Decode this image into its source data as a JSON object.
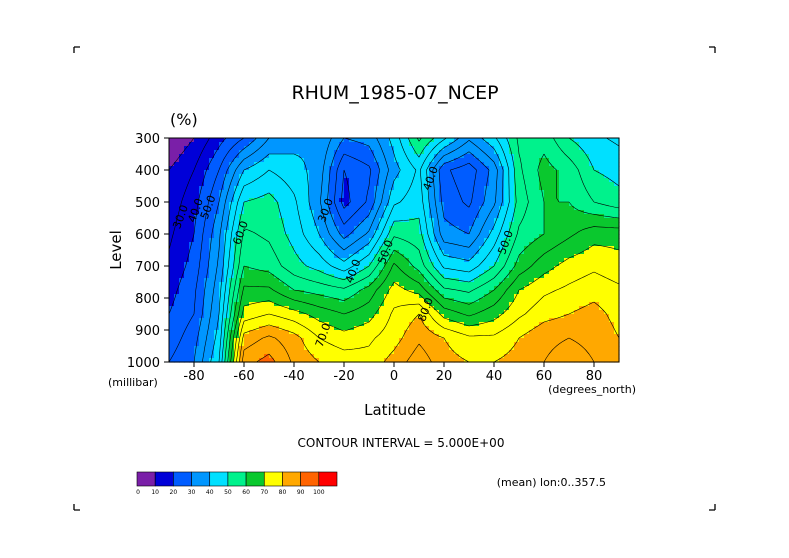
{
  "chart_data": {
    "type": "heatmap",
    "title": "RHUM_1985-07_NCEP",
    "units": "(%)",
    "xlabel": "Latitude",
    "ylabel": "Level",
    "xunits": "(degrees_north)",
    "yunits": "(millibar)",
    "xlim": [
      -90,
      90
    ],
    "ylim": [
      1000,
      300
    ],
    "x_ticks": [
      -80,
      -60,
      -40,
      -20,
      0,
      20,
      40,
      60,
      80
    ],
    "y_ticks": [
      300,
      400,
      500,
      600,
      700,
      800,
      900,
      1000
    ],
    "contour_interval_text": "CONTOUR INTERVAL = 5.000E+00",
    "mean_text": "(mean) lon:0..357.5",
    "grid": false,
    "legend_position": "bottom-left",
    "colorbar": {
      "ticks": [
        "0",
        "10",
        "20",
        "30",
        "40",
        "50",
        "60",
        "70",
        "80",
        "90",
        "100"
      ],
      "colors": [
        "#7a1fa8",
        "#0000d8",
        "#005cff",
        "#0096ff",
        "#00e0ff",
        "#00f28c",
        "#0ac82e",
        "#ffff00",
        "#ffa800",
        "#ff6400",
        "#ff0000"
      ]
    },
    "contour_labels": [
      {
        "text": "30.0",
        "lat": -84,
        "level": 550
      },
      {
        "text": "40.0",
        "lat": -78,
        "level": 530
      },
      {
        "text": "50.0",
        "lat": -73,
        "level": 520
      },
      {
        "text": "60.0",
        "lat": -60,
        "level": 600
      },
      {
        "text": "30.0",
        "lat": -26,
        "level": 530
      },
      {
        "text": "40.0",
        "lat": -15,
        "level": 720
      },
      {
        "text": "50.0",
        "lat": -2,
        "level": 660
      },
      {
        "text": "40.0",
        "lat": 16,
        "level": 430
      },
      {
        "text": "50.0",
        "lat": 46,
        "level": 630
      },
      {
        "text": "70.0",
        "lat": -27,
        "level": 920
      },
      {
        "text": "80.0",
        "lat": 14,
        "level": 840
      }
    ],
    "grid_lat": [
      -90,
      -80,
      -70,
      -60,
      -50,
      -40,
      -30,
      -20,
      -10,
      0,
      10,
      20,
      30,
      40,
      50,
      60,
      70,
      80,
      90
    ],
    "grid_levels": [
      1000,
      925,
      850,
      775,
      700,
      600,
      500,
      400,
      300
    ],
    "values": [
      [
        25,
        30,
        45,
        88,
        92,
        84,
        80,
        78,
        77,
        82,
        88,
        82,
        80,
        80,
        82,
        85,
        87,
        85,
        80
      ],
      [
        22,
        28,
        42,
        82,
        86,
        82,
        75,
        72,
        74,
        78,
        84,
        80,
        76,
        76,
        80,
        84,
        85,
        84,
        80
      ],
      [
        20,
        25,
        40,
        72,
        75,
        72,
        68,
        65,
        68,
        76,
        80,
        68,
        64,
        68,
        74,
        78,
        80,
        82,
        78
      ],
      [
        18,
        24,
        38,
        66,
        66,
        60,
        58,
        56,
        62,
        72,
        68,
        56,
        54,
        60,
        70,
        74,
        76,
        78,
        76
      ],
      [
        16,
        22,
        36,
        60,
        58,
        52,
        48,
        42,
        50,
        66,
        58,
        44,
        42,
        50,
        62,
        68,
        72,
        74,
        72
      ],
      [
        14,
        20,
        34,
        56,
        54,
        48,
        40,
        28,
        36,
        54,
        52,
        32,
        30,
        42,
        56,
        60,
        64,
        68,
        68
      ],
      [
        12,
        18,
        30,
        50,
        52,
        46,
        36,
        18,
        26,
        44,
        48,
        28,
        24,
        34,
        52,
        60,
        60,
        55,
        52
      ],
      [
        10,
        15,
        25,
        40,
        45,
        42,
        38,
        20,
        24,
        38,
        46,
        26,
        22,
        32,
        54,
        62,
        58,
        50,
        48
      ],
      [
        5,
        10,
        18,
        25,
        35,
        38,
        40,
        30,
        32,
        42,
        56,
        46,
        36,
        44,
        56,
        58,
        50,
        46,
        44
      ]
    ]
  }
}
